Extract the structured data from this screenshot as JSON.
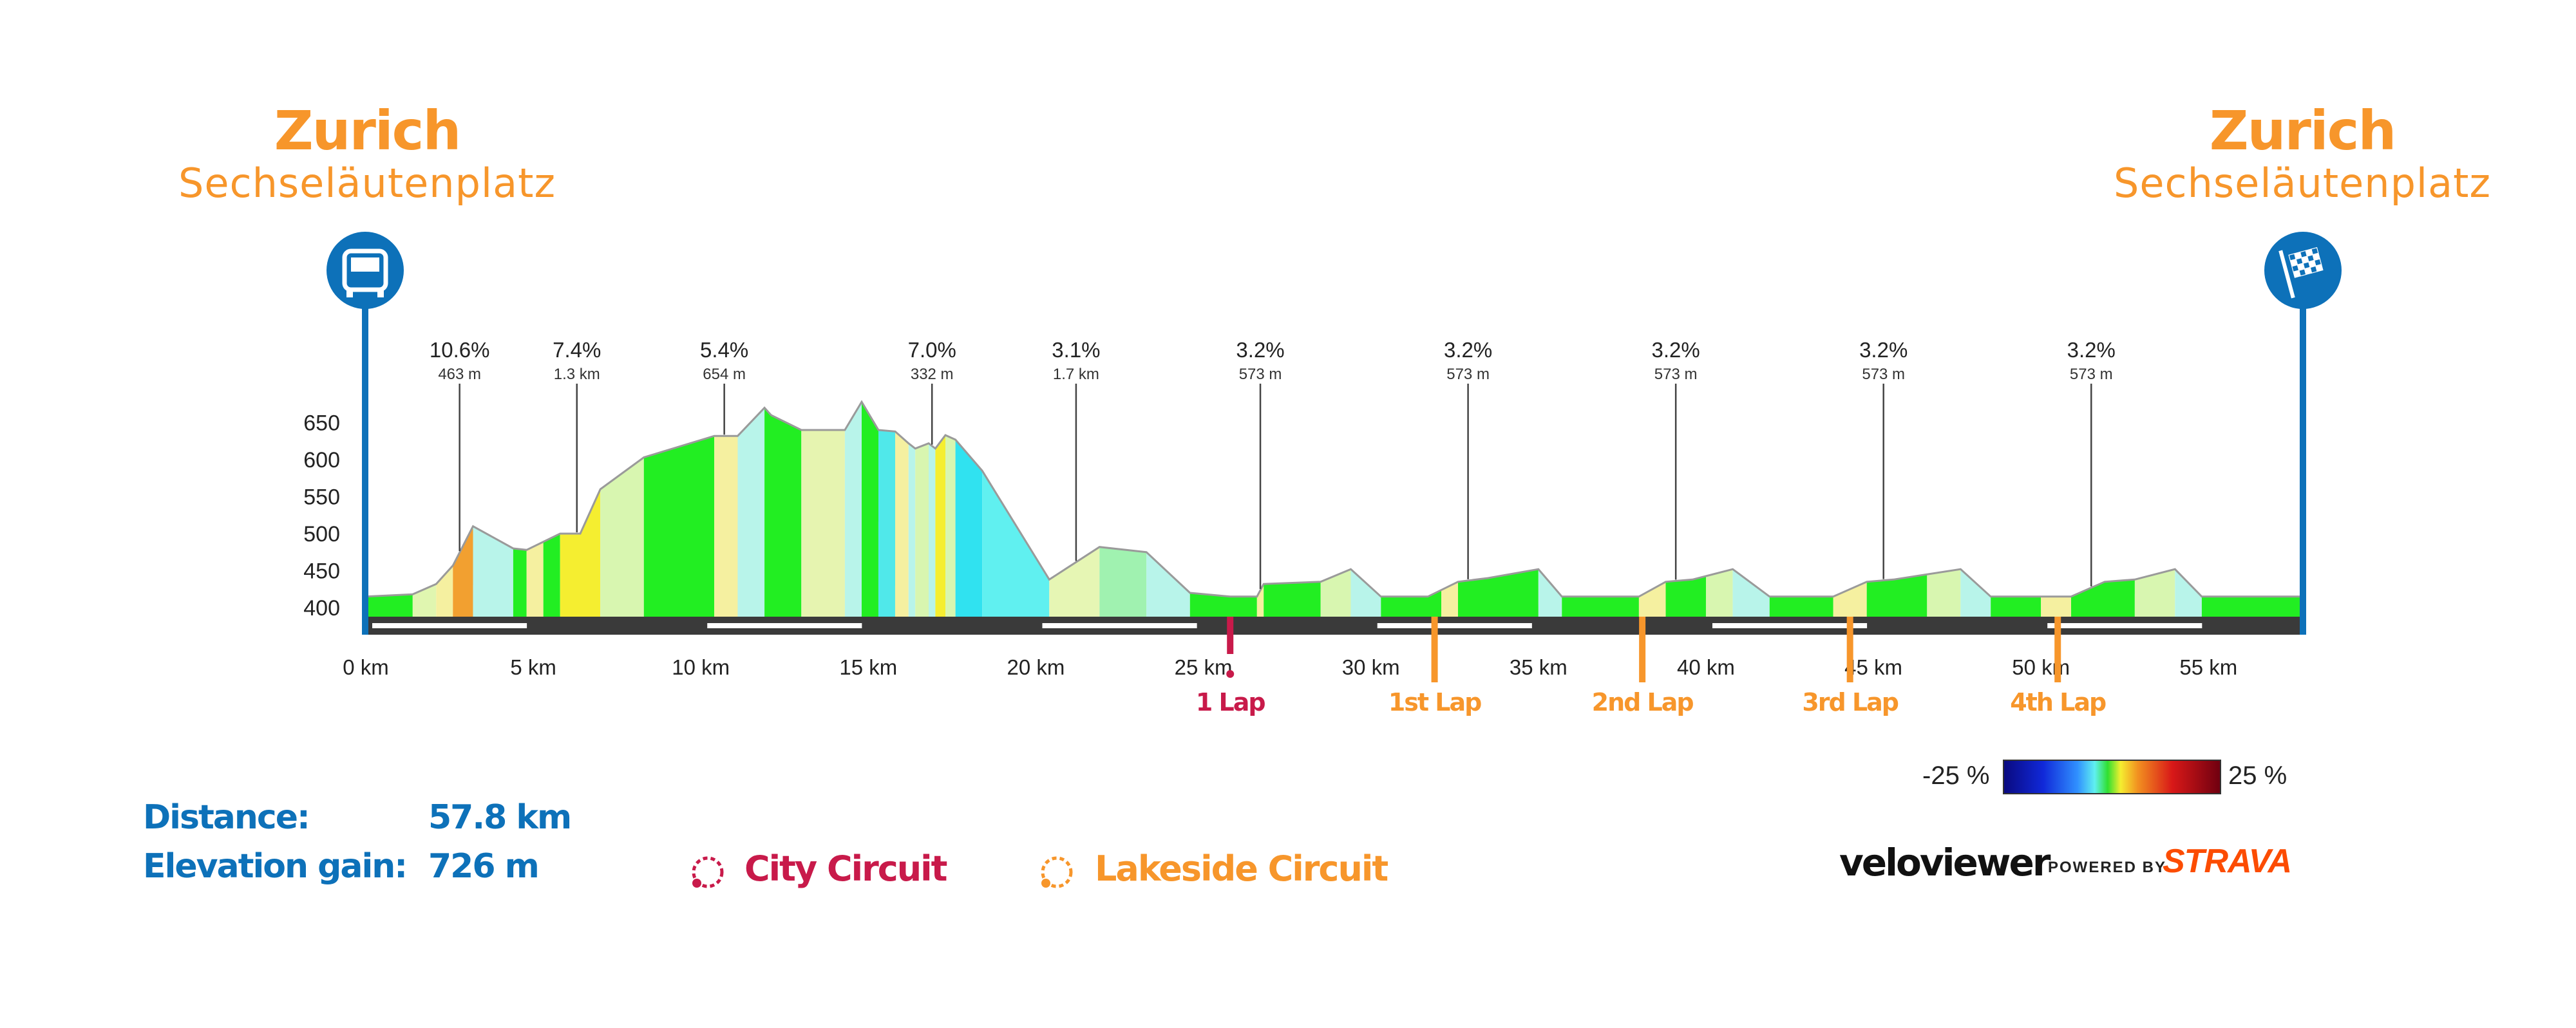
{
  "start": {
    "city": "Zurich",
    "place": "Sechseläutenplatz"
  },
  "finish": {
    "city": "Zurich",
    "place": "Sechseläutenplatz"
  },
  "stats": {
    "distance_label": "Distance:",
    "distance_value": "57.8 km",
    "elevation_label": "Elevation gain:",
    "elevation_value": "726 m"
  },
  "legend": {
    "city_circuit": "City Circuit",
    "lakeside_circuit": "Lakeside Circuit"
  },
  "gradient_scale": {
    "min_label": "-25 %",
    "max_label": "25 %"
  },
  "branding": {
    "veloviewer": "veloviewer",
    "powered_by": "POWERED BY",
    "strava": "STRAVA"
  },
  "laps": [
    {
      "label": "1 Lap",
      "km": 25.8,
      "circuit": "city"
    },
    {
      "label": "1st Lap",
      "km": 31.9,
      "circuit": "lakeside"
    },
    {
      "label": "2nd Lap",
      "km": 38.1,
      "circuit": "lakeside"
    },
    {
      "label": "3rd Lap",
      "km": 44.3,
      "circuit": "lakeside"
    },
    {
      "label": "4th Lap",
      "km": 50.5,
      "circuit": "lakeside"
    }
  ],
  "colors": {
    "orange": "#f7962b",
    "blue": "#0d71b9",
    "red": "#c81a4a",
    "dark": "#3a3a3a"
  },
  "chart_data": {
    "type": "area",
    "xlabel": "",
    "ylabel": "",
    "xlim": [
      0,
      57.8
    ],
    "ylim": [
      375,
      700
    ],
    "xticks": [
      0,
      5,
      10,
      15,
      20,
      25,
      30,
      35,
      40,
      45,
      50,
      55
    ],
    "xtick_labels": [
      "0 km",
      "5 km",
      "10 km",
      "15 km",
      "20 km",
      "25 km",
      "30 km",
      "35 km",
      "40 km",
      "45 km",
      "50 km",
      "55 km"
    ],
    "yticks": [
      400,
      450,
      500,
      550,
      600,
      650
    ],
    "ytick_labels": [
      "400",
      "450",
      "500",
      "550",
      "600",
      "650"
    ],
    "series": [
      {
        "x": [
          0,
          1.4,
          2.1,
          2.6,
          3.2,
          4.4,
          4.8,
          5.8,
          6.4,
          7.0,
          8.3,
          10.4,
          11.1,
          11.9,
          12.1,
          13.0,
          14.3,
          14.8,
          15.3,
          15.8,
          16.2,
          16.4,
          16.8,
          17.0,
          17.3,
          17.6,
          18.4,
          20.4,
          21.9,
          23.3,
          24.6,
          25.8,
          26.6,
          26.8,
          28.5,
          29.4,
          30.3,
          31.7,
          32.6,
          33.5,
          35.0,
          35.7,
          36.6,
          38.0,
          38.8,
          39.6,
          40.8,
          41.9,
          42.7,
          43.8,
          44.8,
          45.6,
          47.6,
          48.5,
          49.2,
          50.9,
          51.9,
          52.8,
          54.0,
          54.8,
          55.8,
          57.8
        ],
        "y": [
          415,
          418,
          432,
          457,
          510,
          480,
          478,
          500,
          500,
          560,
          603,
          632,
          632,
          670,
          660,
          640,
          640,
          678,
          640,
          638,
          622,
          615,
          622,
          615,
          633,
          627,
          585,
          438,
          482,
          475,
          420,
          415,
          415,
          432,
          435,
          452,
          415,
          415,
          435,
          440,
          452,
          415,
          415,
          415,
          435,
          438,
          452,
          415,
          415,
          415,
          435,
          438,
          452,
          415,
          415,
          415,
          435,
          438,
          452,
          415,
          415,
          415
        ]
      }
    ],
    "segments": [
      {
        "from": 0,
        "to": 1.4,
        "color": "#22ee22"
      },
      {
        "from": 1.4,
        "to": 2.1,
        "color": "#e0f6b0"
      },
      {
        "from": 2.1,
        "to": 2.6,
        "color": "#f5f0a0"
      },
      {
        "from": 2.6,
        "to": 3.2,
        "color": "#f2a030"
      },
      {
        "from": 3.2,
        "to": 4.4,
        "color": "#b8f4ea"
      },
      {
        "from": 4.4,
        "to": 4.8,
        "color": "#22ee22"
      },
      {
        "from": 4.8,
        "to": 5.3,
        "color": "#f5f0a0"
      },
      {
        "from": 5.3,
        "to": 5.8,
        "color": "#22ee22"
      },
      {
        "from": 5.8,
        "to": 7.0,
        "color": "#f5ee30"
      },
      {
        "from": 7.0,
        "to": 8.3,
        "color": "#d8f6b0"
      },
      {
        "from": 8.3,
        "to": 10.4,
        "color": "#22ee22"
      },
      {
        "from": 10.4,
        "to": 11.1,
        "color": "#f5f0a0"
      },
      {
        "from": 11.1,
        "to": 11.9,
        "color": "#b8f4ea"
      },
      {
        "from": 11.9,
        "to": 13.0,
        "color": "#22ee22"
      },
      {
        "from": 13.0,
        "to": 14.3,
        "color": "#e6f4b0"
      },
      {
        "from": 14.3,
        "to": 14.8,
        "color": "#b8f4ea"
      },
      {
        "from": 14.8,
        "to": 15.3,
        "color": "#22ee22"
      },
      {
        "from": 15.3,
        "to": 15.8,
        "color": "#50e8ea"
      },
      {
        "from": 15.8,
        "to": 16.2,
        "color": "#f5f0a0"
      },
      {
        "from": 16.2,
        "to": 16.4,
        "color": "#b8f4ea"
      },
      {
        "from": 16.4,
        "to": 16.8,
        "color": "#d8f6b0"
      },
      {
        "from": 16.8,
        "to": 17.0,
        "color": "#b8f4ea"
      },
      {
        "from": 17.0,
        "to": 17.3,
        "color": "#f5ee30"
      },
      {
        "from": 17.3,
        "to": 17.6,
        "color": "#d8f6b0"
      },
      {
        "from": 17.6,
        "to": 18.4,
        "color": "#30e2f0"
      },
      {
        "from": 18.4,
        "to": 20.4,
        "color": "#60f0f0"
      },
      {
        "from": 20.4,
        "to": 21.9,
        "color": "#e6f6b4"
      },
      {
        "from": 21.9,
        "to": 23.3,
        "color": "#a0f2b0"
      },
      {
        "from": 23.3,
        "to": 24.6,
        "color": "#b8f4ea"
      },
      {
        "from": 24.6,
        "to": 26.6,
        "color": "#22ee22"
      },
      {
        "from": 26.6,
        "to": 26.8,
        "color": "#f5f0a0"
      },
      {
        "from": 26.8,
        "to": 28.5,
        "color": "#22ee22"
      },
      {
        "from": 28.5,
        "to": 29.4,
        "color": "#d8f6b0"
      },
      {
        "from": 29.4,
        "to": 30.3,
        "color": "#b8f4ea"
      },
      {
        "from": 30.3,
        "to": 32.1,
        "color": "#22ee22"
      },
      {
        "from": 32.1,
        "to": 32.6,
        "color": "#f5f0a0"
      },
      {
        "from": 32.6,
        "to": 35.0,
        "color": "#22ee22"
      },
      {
        "from": 35.0,
        "to": 35.7,
        "color": "#b8f4ea"
      },
      {
        "from": 35.7,
        "to": 38.0,
        "color": "#22ee22"
      },
      {
        "from": 38.0,
        "to": 38.8,
        "color": "#f5f0a0"
      },
      {
        "from": 38.8,
        "to": 40.0,
        "color": "#22ee22"
      },
      {
        "from": 40.0,
        "to": 40.8,
        "color": "#d8f6b0"
      },
      {
        "from": 40.8,
        "to": 41.9,
        "color": "#b8f4ea"
      },
      {
        "from": 41.9,
        "to": 43.8,
        "color": "#22ee22"
      },
      {
        "from": 43.8,
        "to": 44.8,
        "color": "#f5f0a0"
      },
      {
        "from": 44.8,
        "to": 46.6,
        "color": "#22ee22"
      },
      {
        "from": 46.6,
        "to": 47.6,
        "color": "#d8f6b0"
      },
      {
        "from": 47.6,
        "to": 48.5,
        "color": "#b8f4ea"
      },
      {
        "from": 48.5,
        "to": 50.0,
        "color": "#22ee22"
      },
      {
        "from": 50.0,
        "to": 50.9,
        "color": "#f5f0a0"
      },
      {
        "from": 50.9,
        "to": 52.8,
        "color": "#22ee22"
      },
      {
        "from": 52.8,
        "to": 54.0,
        "color": "#d8f6b0"
      },
      {
        "from": 54.0,
        "to": 54.8,
        "color": "#b8f4ea"
      },
      {
        "from": 54.8,
        "to": 57.8,
        "color": "#22ee22"
      }
    ],
    "climbs": [
      {
        "km": 2.8,
        "gradient": "10.6%",
        "length": "463 m"
      },
      {
        "km": 6.3,
        "gradient": "7.4%",
        "length": "1.3 km"
      },
      {
        "km": 10.7,
        "gradient": "5.4%",
        "length": "654 m"
      },
      {
        "km": 16.9,
        "gradient": "7.0%",
        "length": "332 m"
      },
      {
        "km": 21.2,
        "gradient": "3.1%",
        "length": "1.7 km"
      },
      {
        "km": 26.7,
        "gradient": "3.2%",
        "length": "573 m"
      },
      {
        "km": 32.9,
        "gradient": "3.2%",
        "length": "573 m"
      },
      {
        "km": 39.1,
        "gradient": "3.2%",
        "length": "573 m"
      },
      {
        "km": 45.3,
        "gradient": "3.2%",
        "length": "573 m"
      },
      {
        "km": 51.5,
        "gradient": "3.2%",
        "length": "573 m"
      }
    ],
    "road_dashes": [
      [
        0,
        5
      ],
      [
        10,
        15
      ],
      [
        20,
        25
      ],
      [
        30,
        35
      ],
      [
        40,
        45
      ],
      [
        50,
        55
      ]
    ]
  }
}
